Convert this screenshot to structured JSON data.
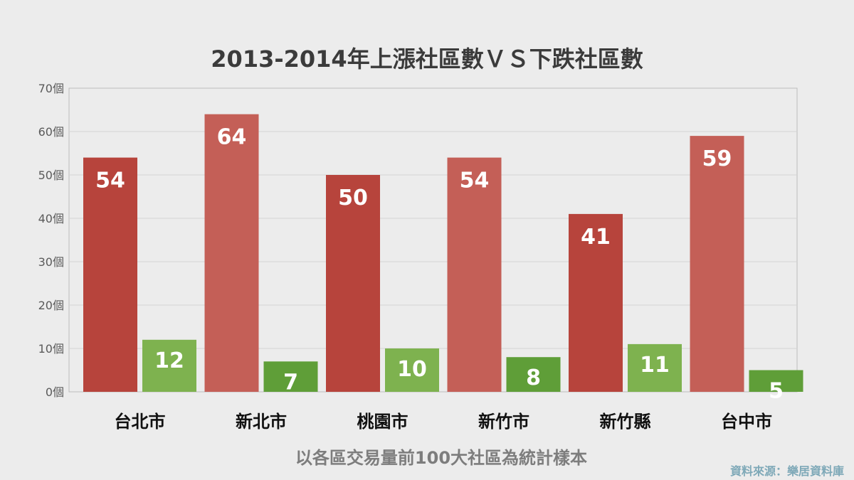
{
  "chart_data": {
    "type": "bar",
    "title": "2013-2014年上漲社區數ＶＳ下跌社區數",
    "xlabel": "以各區交易量前100大社區為統計樣本",
    "ylabel": "",
    "ylim": [
      0,
      70
    ],
    "yticks": [
      "0個",
      "10個",
      "20個",
      "30個",
      "40個",
      "50個",
      "60個",
      "70個"
    ],
    "grid": true,
    "categories": [
      "台北市",
      "新北市",
      "桃園市",
      "新竹市",
      "新竹縣",
      "台中市"
    ],
    "series": [
      {
        "values": [
          54,
          64,
          50,
          54,
          41,
          59
        ]
      },
      {
        "values": [
          12,
          7,
          10,
          8,
          11,
          5
        ]
      }
    ]
  },
  "colors": {
    "red_dark": "#b7443c",
    "red_light": "#c45f57",
    "green_dark": "#5f9e38",
    "green_light": "#7eb24f"
  },
  "source_note": "資料來源：樂居資料庫"
}
